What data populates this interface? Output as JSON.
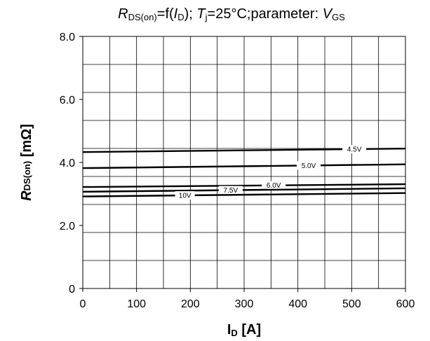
{
  "chart_data": {
    "type": "line",
    "title": {
      "r_symbol": "R",
      "r_sub": "DS(on)",
      "func_open": "=f(",
      "i_symbol": "I",
      "i_sub": "D",
      "func_close": "); ",
      "t_symbol": "T",
      "t_sub": "j",
      "temp_text": "=25°C;parameter: ",
      "v_symbol": "V",
      "v_sub": "GS"
    },
    "xlabel": {
      "main": "I",
      "sub": "D",
      "unit": " [A]"
    },
    "ylabel": {
      "main": "R",
      "sub": "DS(on)",
      "unit": " [mΩ]"
    },
    "xlim": [
      0,
      600
    ],
    "ylim": [
      0,
      8
    ],
    "x_ticks": [
      "0",
      "100",
      "200",
      "300",
      "400",
      "500",
      "600"
    ],
    "y_ticks": [
      "0",
      "2.0",
      "4.0",
      "6.0",
      "8.0"
    ],
    "grid": true,
    "series": [
      {
        "name": "4.5V",
        "x": [
          0,
          600
        ],
        "y": [
          4.33,
          4.44
        ],
        "label_x": 505
      },
      {
        "name": "5.0V",
        "x": [
          0,
          600
        ],
        "y": [
          3.82,
          3.94
        ],
        "label_x": 420
      },
      {
        "name": "6.0V",
        "x": [
          0,
          600
        ],
        "y": [
          3.22,
          3.31
        ],
        "label_x": 355
      },
      {
        "name": "7.5V",
        "x": [
          0,
          600
        ],
        "y": [
          3.07,
          3.18
        ],
        "label_x": 275
      },
      {
        "name": "10V",
        "x": [
          0,
          600
        ],
        "y": [
          2.92,
          3.03
        ],
        "label_x": 190
      }
    ]
  }
}
